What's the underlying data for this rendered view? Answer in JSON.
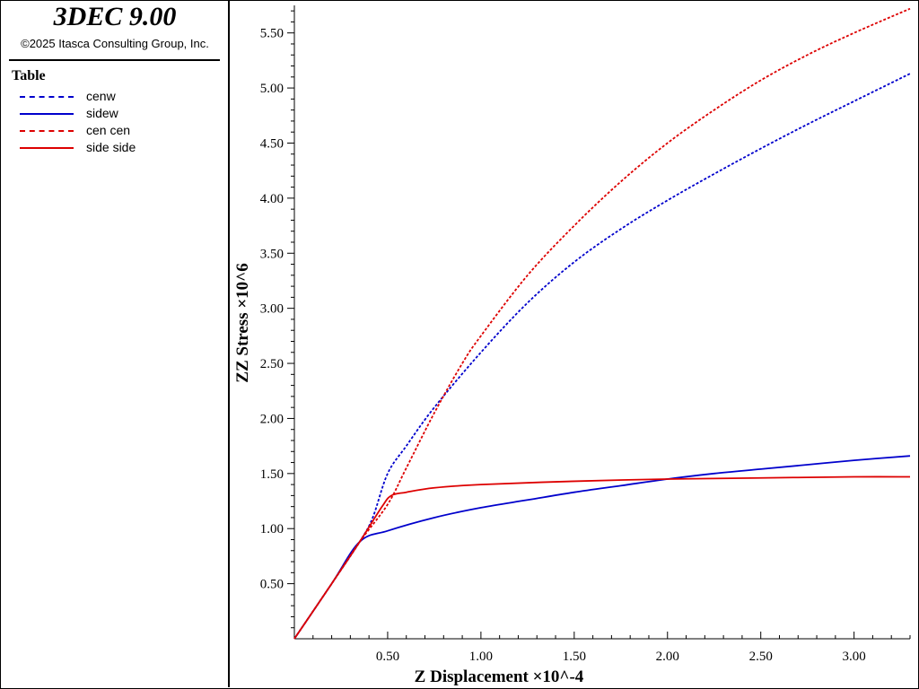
{
  "app": {
    "title": "3DEC 9.00",
    "copyright": "©2025 Itasca Consulting Group, Inc."
  },
  "legend": {
    "title": "Table",
    "items": [
      {
        "label": "cenw",
        "color": "#0000cc",
        "dashed": true
      },
      {
        "label": "sidew",
        "color": "#0000cc",
        "dashed": false
      },
      {
        "label": "cen cen",
        "color": "#dd0000",
        "dashed": true
      },
      {
        "label": "side side",
        "color": "#dd0000",
        "dashed": false
      }
    ]
  },
  "chart_data": {
    "type": "line",
    "xlabel": "Z Displacement ×10^-4",
    "ylabel": "ZZ Stress ×10^6",
    "xlim": [
      0,
      3.3
    ],
    "ylim": [
      0,
      5.75
    ],
    "x_ticks": [
      0.5,
      1.0,
      1.5,
      2.0,
      2.5,
      3.0
    ],
    "x_tick_labels": [
      "0.50",
      "1.00",
      "1.50",
      "2.00",
      "2.50",
      "3.00"
    ],
    "y_ticks": [
      0.5,
      1.0,
      1.5,
      2.0,
      2.5,
      3.0,
      3.5,
      4.0,
      4.5,
      5.0,
      5.5
    ],
    "y_tick_labels": [
      "0.50",
      "1.00",
      "1.50",
      "2.00",
      "2.50",
      "3.00",
      "3.50",
      "4.00",
      "4.50",
      "5.00",
      "5.50"
    ],
    "grid": false,
    "legend_position": "left-panel",
    "series": [
      {
        "name": "cenw",
        "color": "#0000cc",
        "dashed": true,
        "x": [
          0,
          0.2,
          0.35,
          0.42,
          0.5,
          0.6,
          0.75,
          1.0,
          1.25,
          1.5,
          1.75,
          2.0,
          2.25,
          2.5,
          2.75,
          3.0,
          3.3
        ],
        "y": [
          0,
          0.5,
          0.88,
          1.1,
          1.5,
          1.75,
          2.1,
          2.6,
          3.05,
          3.42,
          3.72,
          3.98,
          4.22,
          4.45,
          4.67,
          4.88,
          5.13
        ]
      },
      {
        "name": "sidew",
        "color": "#0000cc",
        "dashed": false,
        "x": [
          0,
          0.2,
          0.35,
          0.5,
          0.75,
          1.0,
          1.25,
          1.5,
          1.75,
          2.0,
          2.25,
          2.5,
          2.75,
          3.0,
          3.3
        ],
        "y": [
          0,
          0.5,
          0.88,
          0.98,
          1.1,
          1.19,
          1.26,
          1.33,
          1.39,
          1.45,
          1.5,
          1.54,
          1.58,
          1.62,
          1.66
        ]
      },
      {
        "name": "cen cen",
        "color": "#dd0000",
        "dashed": true,
        "x": [
          0,
          0.2,
          0.35,
          0.5,
          0.6,
          0.75,
          0.9,
          1.0,
          1.25,
          1.5,
          1.75,
          2.0,
          2.25,
          2.5,
          2.75,
          3.0,
          3.3
        ],
        "y": [
          0,
          0.5,
          0.88,
          1.22,
          1.55,
          2.05,
          2.5,
          2.75,
          3.3,
          3.75,
          4.15,
          4.5,
          4.8,
          5.07,
          5.3,
          5.5,
          5.72
        ]
      },
      {
        "name": "side side",
        "color": "#dd0000",
        "dashed": false,
        "x": [
          0,
          0.2,
          0.35,
          0.47,
          0.52,
          0.6,
          0.75,
          1.0,
          1.5,
          2.0,
          2.5,
          3.0,
          3.3
        ],
        "y": [
          0,
          0.5,
          0.88,
          1.2,
          1.3,
          1.33,
          1.37,
          1.4,
          1.43,
          1.45,
          1.46,
          1.47,
          1.47
        ]
      }
    ]
  }
}
